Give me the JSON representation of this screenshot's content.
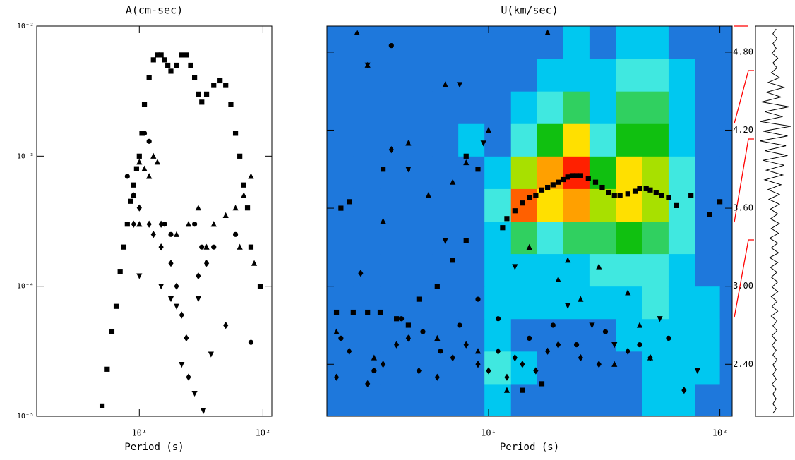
{
  "chart_data": [
    {
      "type": "scatter",
      "title": "A(cm-sec)",
      "xlabel": "Period (s)",
      "xlog": true,
      "ylog": true,
      "xlim": [
        1.48,
        118
      ],
      "ylim": [
        1e-05,
        0.01
      ],
      "xticks": [
        {
          "value": 10,
          "label": "10¹"
        },
        {
          "value": 100,
          "label": "10²"
        }
      ],
      "yticks": [
        {
          "value": 1e-05,
          "label": "10⁻⁵"
        },
        {
          "value": 0.0001,
          "label": "10⁻⁴"
        },
        {
          "value": 0.001,
          "label": "10⁻³"
        },
        {
          "value": 0.01,
          "label": "10⁻²"
        }
      ],
      "series": [
        {
          "marker": "square",
          "color": "#000000",
          "x": [
            5,
            5.5,
            6,
            6.5,
            7,
            7.5,
            8,
            8.5,
            9,
            9.5,
            10,
            10.5,
            11,
            12,
            13,
            14,
            15,
            16,
            17,
            18,
            20,
            22,
            24,
            26,
            28,
            30,
            32,
            35,
            40,
            45,
            50,
            55,
            60,
            65,
            70,
            75,
            80,
            95
          ],
          "y": [
            1.2e-05,
            2.3e-05,
            4.5e-05,
            7e-05,
            0.00013,
            0.0002,
            0.0003,
            0.00045,
            0.0006,
            0.0008,
            0.001,
            0.0015,
            0.0025,
            0.004,
            0.0055,
            0.006,
            0.006,
            0.0055,
            0.005,
            0.0045,
            0.005,
            0.006,
            0.006,
            0.005,
            0.004,
            0.003,
            0.0026,
            0.003,
            0.0035,
            0.0038,
            0.0035,
            0.0025,
            0.0015,
            0.001,
            0.0006,
            0.0004,
            0.0002,
            0.0001
          ]
        },
        {
          "marker": "triangle",
          "color": "#000000",
          "x": [
            9,
            10,
            11,
            12,
            13,
            14,
            10,
            20,
            25,
            30,
            35,
            40,
            50,
            60,
            70,
            80,
            65,
            85
          ],
          "y": [
            0.0005,
            0.0009,
            0.0008,
            0.0007,
            0.001,
            0.0009,
            0.0003,
            0.00025,
            0.0003,
            0.0004,
            0.0002,
            0.0003,
            0.00035,
            0.0004,
            0.0005,
            0.0007,
            0.0002,
            0.00015
          ]
        },
        {
          "marker": "diamond",
          "color": "#000000",
          "x": [
            9,
            10,
            12,
            13,
            15,
            18,
            20,
            22,
            25,
            24,
            30,
            35,
            50,
            15
          ],
          "y": [
            0.0003,
            0.0004,
            0.0003,
            0.00025,
            0.0002,
            0.00015,
            0.0001,
            6e-05,
            2e-05,
            4e-05,
            0.00012,
            0.00015,
            5e-05,
            0.0003
          ]
        },
        {
          "marker": "circle",
          "color": "#000000",
          "x": [
            8,
            9,
            11,
            12,
            16,
            18,
            28,
            32,
            40,
            60,
            80
          ],
          "y": [
            0.0007,
            0.0005,
            0.0015,
            0.0013,
            0.0003,
            0.00025,
            0.0003,
            0.0002,
            0.0002,
            0.00025,
            3.7e-05
          ]
        },
        {
          "marker": "inverted",
          "color": "#000000",
          "x": [
            10,
            15,
            18,
            20,
            22,
            28,
            33,
            38,
            30
          ],
          "y": [
            0.00012,
            0.0001,
            8e-05,
            7e-05,
            2.5e-05,
            1.5e-05,
            1.1e-05,
            3e-05,
            8e-05
          ]
        }
      ]
    },
    {
      "type": "contour",
      "title": "U(km/sec)",
      "xlabel": "Period (s)",
      "xlog": true,
      "xlim": [
        2,
        113
      ],
      "ylim": [
        2.0,
        5.0
      ],
      "xticks": [
        {
          "value": 10,
          "label": "10¹"
        },
        {
          "value": 100,
          "label": "10²"
        }
      ],
      "yticks": [
        {
          "value": 2.4,
          "label": "2.40"
        },
        {
          "value": 3,
          "label": "3.00"
        },
        {
          "value": 3.6,
          "label": "3.60"
        },
        {
          "value": 4.2,
          "label": "4.20"
        },
        {
          "value": 4.8,
          "label": "4.80"
        }
      ],
      "level_colors": [
        "#1e78dc",
        "#00c8f0",
        "#40e8e0",
        "#30d060",
        "#10c010",
        "#a8e000",
        "#ffe000",
        "#ffa000",
        "#ff6000",
        "#ff2000",
        "#e00000"
      ],
      "x_edges": [
        2,
        2.6,
        3.4,
        4.4,
        5.7,
        7.4,
        9.6,
        12.5,
        16.2,
        21,
        27.3,
        35.5,
        46,
        60,
        78,
        100,
        113
      ],
      "y_edges": [
        2.0,
        2.25,
        2.5,
        2.75,
        3.0,
        3.25,
        3.5,
        3.75,
        4.0,
        4.25,
        4.5,
        4.75,
        5.0
      ],
      "z": [
        [
          0,
          0,
          0,
          0,
          0,
          0,
          1,
          0,
          0,
          0,
          0,
          0,
          1,
          1,
          0,
          0
        ],
        [
          0,
          0,
          0,
          0,
          0,
          0,
          2,
          1,
          0,
          0,
          0,
          0,
          1,
          1,
          1,
          0
        ],
        [
          0,
          0,
          0,
          0,
          0,
          0,
          1,
          0,
          0,
          0,
          0,
          1,
          1,
          1,
          1,
          0
        ],
        [
          0,
          0,
          0,
          0,
          0,
          0,
          1,
          1,
          1,
          1,
          1,
          1,
          2,
          1,
          1,
          0
        ],
        [
          0,
          0,
          0,
          0,
          0,
          0,
          1,
          1,
          1,
          1,
          2,
          2,
          2,
          1,
          0,
          0
        ],
        [
          0,
          0,
          0,
          0,
          0,
          0,
          1,
          3,
          2,
          3,
          3,
          4,
          3,
          2,
          0,
          0
        ],
        [
          0,
          0,
          0,
          0,
          0,
          0,
          2,
          8,
          6,
          7,
          5,
          6,
          5,
          2,
          0,
          0
        ],
        [
          0,
          0,
          0,
          0,
          0,
          0,
          1,
          5,
          7,
          9,
          4,
          6,
          5,
          2,
          0,
          0
        ],
        [
          0,
          0,
          0,
          0,
          0,
          1,
          0,
          2,
          4,
          6,
          2,
          4,
          4,
          1,
          0,
          0
        ],
        [
          0,
          0,
          0,
          0,
          0,
          0,
          0,
          1,
          2,
          3,
          1,
          3,
          3,
          1,
          0,
          0
        ],
        [
          0,
          0,
          0,
          0,
          0,
          0,
          0,
          0,
          1,
          1,
          1,
          2,
          2,
          1,
          0,
          0
        ],
        [
          0,
          0,
          0,
          0,
          0,
          0,
          0,
          0,
          0,
          1,
          0,
          1,
          1,
          0,
          0,
          0
        ]
      ],
      "series": [
        {
          "marker": "square",
          "color": "#000000",
          "x": [
            11.5,
            12,
            13,
            14,
            15,
            16,
            17,
            18,
            19,
            20,
            21,
            22,
            23,
            24,
            25,
            27,
            29,
            31,
            33,
            35,
            37,
            40,
            43,
            45,
            48,
            50,
            53,
            56,
            60,
            65,
            75,
            90,
            100,
            8,
            7,
            6,
            5,
            9,
            8,
            2.5,
            2.3,
            3.5,
            2.2,
            2.6,
            3,
            3.4,
            4,
            4.5,
            14,
            17
          ],
          "y": [
            3.45,
            3.52,
            3.58,
            3.64,
            3.68,
            3.7,
            3.74,
            3.76,
            3.78,
            3.8,
            3.82,
            3.84,
            3.85,
            3.85,
            3.85,
            3.83,
            3.8,
            3.76,
            3.72,
            3.7,
            3.7,
            3.71,
            3.73,
            3.75,
            3.75,
            3.74,
            3.72,
            3.7,
            3.68,
            3.62,
            3.7,
            3.55,
            3.65,
            3.35,
            3.2,
            3.0,
            2.9,
            3.9,
            4.0,
            3.65,
            3.6,
            3.9,
            2.8,
            2.8,
            2.8,
            2.8,
            2.75,
            2.7,
            2.2,
            2.25
          ]
        },
        {
          "marker": "triangle",
          "color": "#000000",
          "x": [
            2.7,
            3,
            3.5,
            4.5,
            5.5,
            6.5,
            7,
            8,
            10,
            12,
            15,
            20,
            25,
            30,
            35,
            40,
            45,
            50,
            9,
            6,
            3.2,
            2.2,
            18,
            22
          ],
          "y": [
            4.95,
            4.7,
            3.5,
            4.1,
            3.7,
            4.55,
            3.8,
            3.95,
            4.2,
            2.2,
            3.3,
            3.05,
            2.9,
            3.15,
            2.4,
            2.95,
            2.7,
            2.45,
            2.5,
            2.6,
            2.45,
            2.65,
            4.95,
            3.2
          ]
        },
        {
          "marker": "diamond",
          "color": "#000000",
          "x": [
            2.2,
            2.5,
            3,
            3.5,
            4,
            4.5,
            5,
            6,
            7,
            8,
            9,
            10,
            11,
            12,
            13,
            14,
            16,
            18,
            20,
            25,
            30,
            40,
            50,
            70,
            2.8,
            3.8
          ],
          "y": [
            2.3,
            2.5,
            2.25,
            2.4,
            2.55,
            2.6,
            2.35,
            2.3,
            2.45,
            2.55,
            2.4,
            2.35,
            2.5,
            2.3,
            2.45,
            2.4,
            2.35,
            2.5,
            2.55,
            2.45,
            2.4,
            2.5,
            2.45,
            2.2,
            3.1,
            4.05
          ]
        },
        {
          "marker": "circle",
          "color": "#000000",
          "x": [
            2.3,
            3.2,
            4.2,
            5.2,
            6.2,
            7.5,
            9,
            11,
            15,
            19,
            24,
            32,
            45,
            60,
            3.8
          ],
          "y": [
            2.6,
            2.35,
            2.75,
            2.65,
            2.5,
            2.7,
            2.9,
            2.75,
            2.6,
            2.7,
            2.55,
            2.65,
            2.55,
            2.6,
            4.85
          ]
        },
        {
          "marker": "inverted",
          "color": "#000000",
          "x": [
            3,
            4.5,
            6.5,
            7.5,
            9.5,
            13,
            22,
            28,
            35,
            55,
            80
          ],
          "y": [
            4.7,
            3.9,
            3.35,
            4.55,
            4.1,
            3.15,
            2.85,
            2.7,
            2.55,
            2.75,
            2.35
          ]
        }
      ]
    },
    {
      "type": "trace",
      "values": [
        0.1,
        -0.1,
        0.15,
        -0.1,
        0.1,
        -0.15,
        0.2,
        -0.1,
        0.15,
        -0.2,
        0.3,
        -0.4,
        0.6,
        -0.5,
        0.4,
        -0.8,
        0.9,
        -0.6,
        0.5,
        -0.9,
        1,
        -0.7,
        0.8,
        -0.9,
        0.7,
        -0.6,
        0.8,
        -0.7,
        0.6,
        -0.5,
        0.5,
        -0.6,
        0.4,
        -0.4,
        0.3,
        -0.35,
        0.3,
        -0.25,
        0.2,
        -0.25,
        0.3,
        -0.2,
        0.25,
        -0.3,
        0.2,
        -0.2,
        0.25,
        -0.3,
        0.2,
        -0.25,
        0.15,
        -0.2,
        0.2,
        -0.15,
        0.2,
        -0.2,
        0.15,
        -0.15,
        0.2,
        -0.2,
        0.15,
        -0.1,
        0.15,
        -0.15,
        0.1,
        -0.15,
        0.1,
        -0.1,
        0.15,
        -0.1,
        0.1,
        -0.1,
        0.1,
        -0.15,
        0.1,
        -0.1,
        0.1,
        -0.1,
        0.1,
        -0.1
      ],
      "ylim": [
        -1,
        1
      ]
    }
  ]
}
